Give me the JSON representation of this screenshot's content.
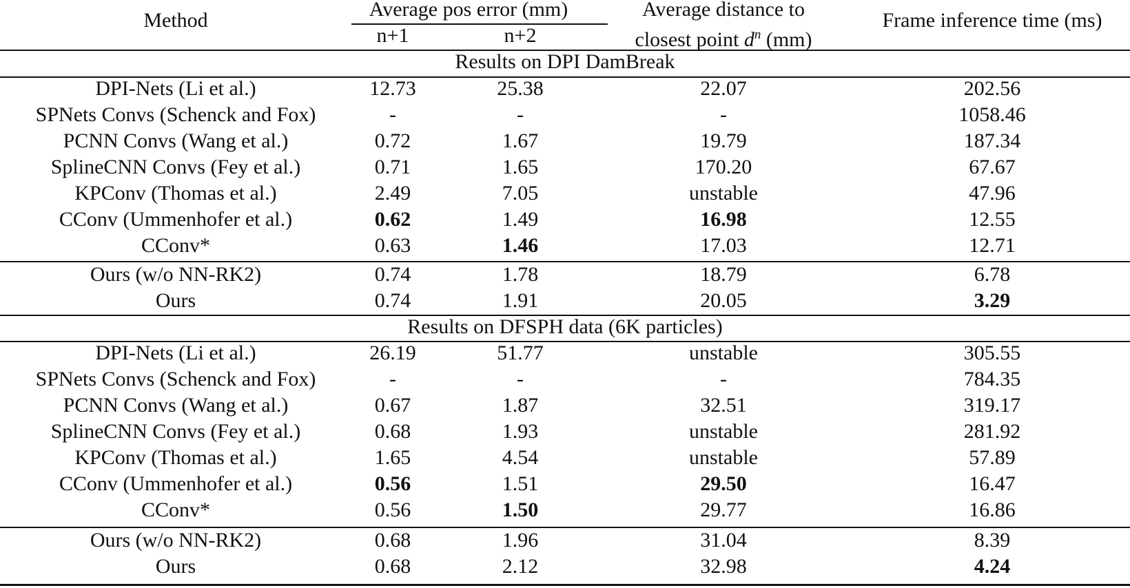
{
  "table": {
    "header": {
      "method": "Method",
      "pos_error_group": "Average pos error (mm)",
      "n1": "n+1",
      "n2": "n+2",
      "dist_line1": "Average distance to",
      "dist_line2_pre": "closest point ",
      "dist_symbol": "d",
      "dist_sup": "n",
      "dist_line2_post": " (mm)",
      "time": "Frame inference time (ms)"
    },
    "sections": [
      {
        "title": "Results on DPI DamBreak",
        "rows": [
          {
            "method": "DPI-Nets (Li et al.)",
            "n1": "12.73",
            "n2": "25.38",
            "dist": "22.07",
            "time": "202.56",
            "bold": []
          },
          {
            "method": "SPNets Convs (Schenck and Fox)",
            "n1": "-",
            "n2": "-",
            "dist": "-",
            "time": "1058.46",
            "bold": []
          },
          {
            "method": "PCNN Convs (Wang et al.)",
            "n1": "0.72",
            "n2": "1.67",
            "dist": "19.79",
            "time": "187.34",
            "bold": []
          },
          {
            "method": "SplineCNN Convs (Fey et al.)",
            "n1": "0.71",
            "n2": "1.65",
            "dist": "170.20",
            "time": "67.67",
            "bold": []
          },
          {
            "method": "KPConv (Thomas et al.)",
            "n1": "2.49",
            "n2": "7.05",
            "dist": "unstable",
            "time": "47.96",
            "bold": []
          },
          {
            "method": "CConv (Ummenhofer et al.)",
            "n1": "0.62",
            "n2": "1.49",
            "dist": "16.98",
            "time": "12.55",
            "bold": [
              "n1",
              "dist"
            ]
          },
          {
            "method": "CConv*",
            "n1": "0.63",
            "n2": "1.46",
            "dist": "17.03",
            "time": "12.71",
            "bold": [
              "n2"
            ]
          },
          {
            "method": "Ours (w/o NN-RK2)",
            "n1": "0.74",
            "n2": "1.78",
            "dist": "18.79",
            "time": "6.78",
            "bold": []
          },
          {
            "method": "Ours",
            "n1": "0.74",
            "n2": "1.91",
            "dist": "20.05",
            "time": "3.29",
            "bold": [
              "time"
            ]
          }
        ]
      },
      {
        "title": "Results on DFSPH data (6K particles)",
        "rows": [
          {
            "method": "DPI-Nets (Li et al.)",
            "n1": "26.19",
            "n2": "51.77",
            "dist": "unstable",
            "time": "305.55",
            "bold": []
          },
          {
            "method": "SPNets Convs (Schenck and Fox)",
            "n1": "-",
            "n2": "-",
            "dist": "-",
            "time": "784.35",
            "bold": []
          },
          {
            "method": "PCNN Convs (Wang et al.)",
            "n1": "0.67",
            "n2": "1.87",
            "dist": "32.51",
            "time": "319.17",
            "bold": []
          },
          {
            "method": "SplineCNN Convs (Fey et al.)",
            "n1": "0.68",
            "n2": "1.93",
            "dist": "unstable",
            "time": "281.92",
            "bold": []
          },
          {
            "method": "KPConv (Thomas et al.)",
            "n1": "1.65",
            "n2": "4.54",
            "dist": "unstable",
            "time": "57.89",
            "bold": []
          },
          {
            "method": "CConv (Ummenhofer et al.)",
            "n1": "0.56",
            "n2": "1.51",
            "dist": "29.50",
            "time": "16.47",
            "bold": [
              "n1",
              "dist"
            ]
          },
          {
            "method": "CConv*",
            "n1": "0.56",
            "n2": "1.50",
            "dist": "29.77",
            "time": "16.86",
            "bold": [
              "n2"
            ]
          },
          {
            "method": "Ours (w/o NN-RK2)",
            "n1": "0.68",
            "n2": "1.96",
            "dist": "31.04",
            "time": "8.39",
            "bold": []
          },
          {
            "method": "Ours",
            "n1": "0.68",
            "n2": "2.12",
            "dist": "32.98",
            "time": "4.24",
            "bold": [
              "time"
            ]
          }
        ]
      }
    ]
  }
}
